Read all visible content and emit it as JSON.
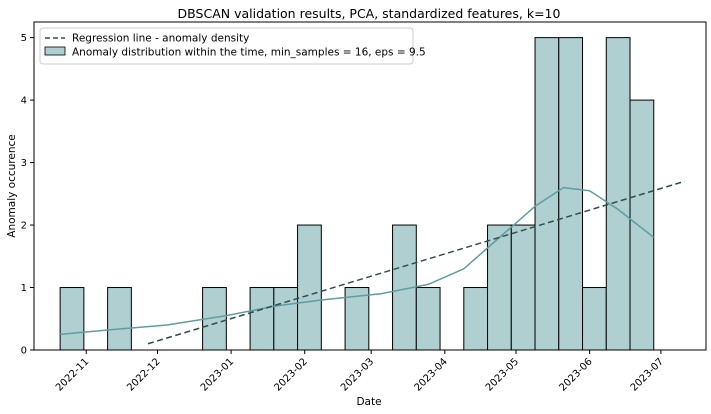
{
  "chart_data": {
    "type": "bar",
    "title": "DBSCAN validation results, PCA, standardized features, k=10",
    "xlabel": "Date",
    "ylabel": "Anomaly occurence",
    "ylim": [
      0,
      5.25
    ],
    "yticks": [
      0,
      1,
      2,
      3,
      4,
      5
    ],
    "xticks": [
      "2022-11",
      "2022-12",
      "2023-01",
      "2023-02",
      "2023-03",
      "2023-04",
      "2023-05",
      "2023-06",
      "2023-07"
    ],
    "x_range": [
      "2022-10-10",
      "2023-07-20"
    ],
    "bar_start": "2022-10-21",
    "bar_width_days": 10,
    "bins": [
      {
        "start": "2022-10-21",
        "count": 1
      },
      {
        "start": "2022-10-31",
        "count": 0
      },
      {
        "start": "2022-11-10",
        "count": 1
      },
      {
        "start": "2022-11-20",
        "count": 0
      },
      {
        "start": "2022-11-30",
        "count": 0
      },
      {
        "start": "2022-12-10",
        "count": 0
      },
      {
        "start": "2022-12-20",
        "count": 1
      },
      {
        "start": "2022-12-30",
        "count": 0
      },
      {
        "start": "2023-01-09",
        "count": 1
      },
      {
        "start": "2023-01-19",
        "count": 1
      },
      {
        "start": "2023-01-29",
        "count": 2
      },
      {
        "start": "2023-02-08",
        "count": 0
      },
      {
        "start": "2023-02-18",
        "count": 1
      },
      {
        "start": "2023-02-28",
        "count": 0
      },
      {
        "start": "2023-03-10",
        "count": 2
      },
      {
        "start": "2023-03-20",
        "count": 1
      },
      {
        "start": "2023-03-30",
        "count": 0
      },
      {
        "start": "2023-04-09",
        "count": 1
      },
      {
        "start": "2023-04-19",
        "count": 2
      },
      {
        "start": "2023-04-29",
        "count": 2
      },
      {
        "start": "2023-05-09",
        "count": 5
      },
      {
        "start": "2023-05-19",
        "count": 5
      },
      {
        "start": "2023-05-29",
        "count": 1
      },
      {
        "start": "2023-06-08",
        "count": 5
      },
      {
        "start": "2023-06-18",
        "count": 4
      }
    ],
    "regression_line": {
      "x": [
        "2022-11-27",
        "2023-07-11"
      ],
      "y": [
        0.1,
        2.7
      ]
    },
    "kde_curve": [
      {
        "x": "2022-10-21",
        "y": 0.25
      },
      {
        "x": "2022-11-10",
        "y": 0.32
      },
      {
        "x": "2022-12-05",
        "y": 0.4
      },
      {
        "x": "2022-12-30",
        "y": 0.55
      },
      {
        "x": "2023-01-19",
        "y": 0.7
      },
      {
        "x": "2023-02-08",
        "y": 0.8
      },
      {
        "x": "2023-03-05",
        "y": 0.9
      },
      {
        "x": "2023-03-25",
        "y": 1.05
      },
      {
        "x": "2023-04-09",
        "y": 1.3
      },
      {
        "x": "2023-04-24",
        "y": 1.8
      },
      {
        "x": "2023-05-09",
        "y": 2.3
      },
      {
        "x": "2023-05-21",
        "y": 2.6
      },
      {
        "x": "2023-06-01",
        "y": 2.55
      },
      {
        "x": "2023-06-13",
        "y": 2.25
      },
      {
        "x": "2023-06-28",
        "y": 1.8
      }
    ],
    "legend": {
      "position": "top-left",
      "entries": [
        {
          "label": "Regression line - anomaly density",
          "style": "dashed-line"
        },
        {
          "label": "Anomaly distribution within the time, min_samples = 16, eps = 9.5",
          "style": "patch"
        }
      ]
    },
    "colors": {
      "bar_fill": "#afcfd1",
      "bar_edge": "#000000",
      "kde": "#5f9ea0",
      "regression": "#2f4f4f"
    },
    "grid": false
  }
}
